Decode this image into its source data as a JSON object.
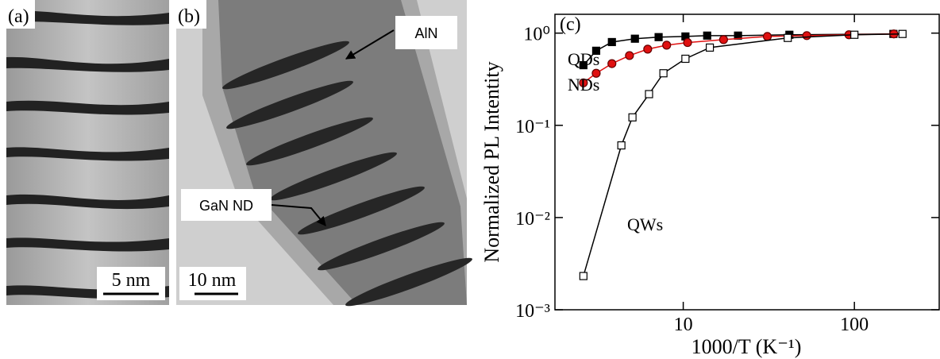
{
  "panels": {
    "a": {
      "label": "(a)",
      "scale_bar": "5 nm"
    },
    "b": {
      "label": "(b)",
      "scale_bar": "10 nm",
      "callouts": [
        "AlN",
        "GaN ND"
      ]
    }
  },
  "chart_data": {
    "type": "line",
    "panel_label": "(c)",
    "x_label": "1000/T (K⁻¹)",
    "y_label": "Normalized PL Intentity",
    "xscale": "log",
    "yscale": "log",
    "xlim": [
      1.78,
      313
    ],
    "ylim": [
      0.001,
      1.6
    ],
    "xticks": [
      10,
      100
    ],
    "yticks": [
      {
        "value": 0.001,
        "label": "10⁻³"
      },
      {
        "value": 0.01,
        "label": "10⁻²"
      },
      {
        "value": 0.1,
        "label": "10⁻¹"
      },
      {
        "value": 1,
        "label": "10⁰"
      }
    ],
    "series": [
      {
        "name": "QDs",
        "color": "#000000",
        "marker": "square",
        "filled": true,
        "x": [
          2.61,
          3.1,
          3.83,
          5.22,
          7.18,
          10.3,
          13.8,
          20.9,
          41.7,
          169
        ],
        "values": [
          0.449,
          0.644,
          0.8,
          0.87,
          0.905,
          0.92,
          0.94,
          0.94,
          0.96,
          0.98
        ]
      },
      {
        "name": "NDs",
        "color": "#e01010",
        "marker": "circle",
        "filled": true,
        "x": [
          2.61,
          3.1,
          3.83,
          4.85,
          6.2,
          8.0,
          10.6,
          17.2,
          31.0,
          52.7,
          92.9,
          170
        ],
        "values": [
          0.289,
          0.367,
          0.467,
          0.571,
          0.67,
          0.74,
          0.79,
          0.85,
          0.92,
          0.94,
          0.96,
          0.98
        ]
      },
      {
        "name": "QWs",
        "color": "#000000",
        "marker": "square",
        "filled": false,
        "x": [
          2.61,
          4.35,
          5.05,
          6.31,
          7.66,
          10.3,
          14.3,
          40.8,
          100,
          191
        ],
        "values": [
          0.00232,
          0.0606,
          0.122,
          0.218,
          0.367,
          0.527,
          0.697,
          0.887,
          0.96,
          0.98
        ]
      }
    ]
  }
}
